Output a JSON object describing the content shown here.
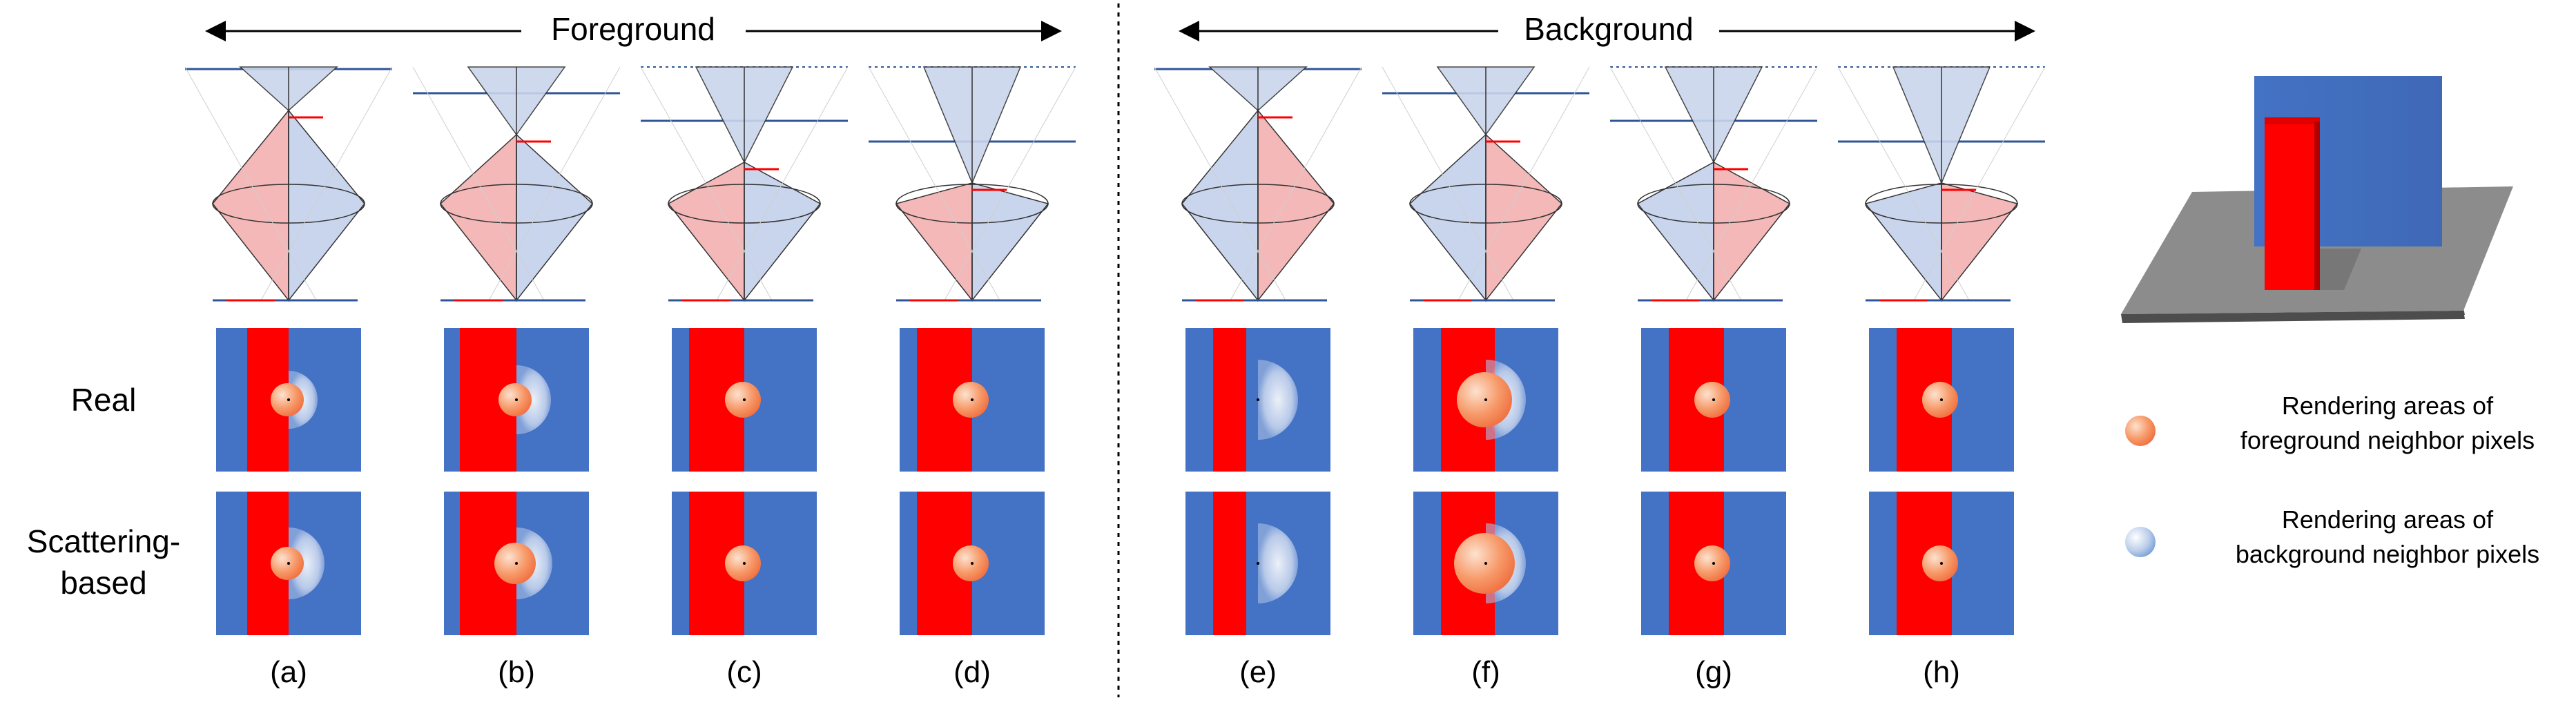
{
  "header": {
    "left": "Foreground",
    "right": "Background"
  },
  "rows": {
    "real": "Real",
    "scattering_line1": "Scattering-",
    "scattering_line2": "based"
  },
  "panels": [
    {
      "label": "(a)"
    },
    {
      "label": "(b)"
    },
    {
      "label": "(c)"
    },
    {
      "label": "(d)"
    },
    {
      "label": "(e)"
    },
    {
      "label": "(f)"
    },
    {
      "label": "(g)"
    },
    {
      "label": "(h)"
    }
  ],
  "legend": {
    "foreground_line1": "Rendering areas of",
    "foreground_line2": "foreground neighbor pixels",
    "background_line1": "Rendering areas of",
    "background_line2": "background neighbor pixels"
  },
  "colors": {
    "red": "#ff0000",
    "blue": "#4472c4",
    "cone_red": "#f4b8b8",
    "cone_blue": "#c9d5ec",
    "line_blue": "#2f5597",
    "floor": "#8c8c8c"
  }
}
